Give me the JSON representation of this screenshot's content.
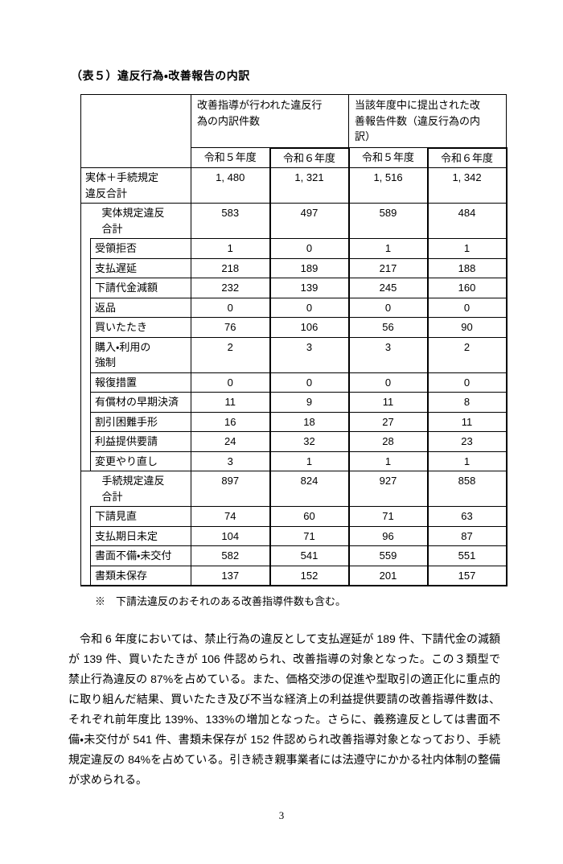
{
  "page": {
    "title": "（表５）違反行為・改善報告の内訳",
    "note": "※　下請法違反のおそれのある改善指導件数も含む。",
    "paragraph": "　令和 6 年度においては、禁止行為の違反として支払遅延が 189 件、下請代金の減額が 139 件、買いたたきが 106 件認められ、改善指導の対象となった。この３類型で禁止行為違反の 87%を占めている。また、価格交渉の促進や型取引の適正化に重点的に取り組んだ結果、買いたたき及び不当な経済上の利益提供要請の改善指導件数は、それぞれ前年度比 139%、133%の増加となった。さらに、義務違反としては書面不備・未交付が 541 件、書類未保存が 152 件認められ改善指導対象となっており、手続規定違反の 84%を占めている。引き続き親事業者には法遵守にかかる社内体制の整備が求められる。",
    "page_number": "3"
  },
  "colors": {
    "text": "#000000",
    "border": "#000000",
    "background": "#ffffff"
  },
  "table": {
    "col_groups": [
      {
        "label": "改善指導が行われた違反行\n為の内訳件数"
      },
      {
        "label": "当該年度中に提出された改\n善報告件数（違反行為の内\n訳）"
      }
    ],
    "year_headers": [
      "令和５年度",
      "令和６年度",
      "令和５年度",
      "令和６年度"
    ],
    "rows": [
      {
        "label": "実体＋手続規定\n違反合計",
        "level": 1,
        "values": [
          "1, 480",
          "1, 321",
          "1, 516",
          "1, 342"
        ]
      },
      {
        "label": "実体規定違反\n合計",
        "level": 2,
        "values": [
          "583",
          "497",
          "589",
          "484"
        ]
      },
      {
        "label": "受領拒否",
        "level": 3,
        "values": [
          "1",
          "0",
          "1",
          "1"
        ]
      },
      {
        "label": "支払遅延",
        "level": 3,
        "values": [
          "218",
          "189",
          "217",
          "188"
        ]
      },
      {
        "label": "下請代金減額",
        "level": 3,
        "values": [
          "232",
          "139",
          "245",
          "160"
        ]
      },
      {
        "label": "返品",
        "level": 3,
        "values": [
          "0",
          "0",
          "0",
          "0"
        ]
      },
      {
        "label": "買いたたき",
        "level": 3,
        "values": [
          "76",
          "106",
          "56",
          "90"
        ]
      },
      {
        "label": "購入・利用の\n強制",
        "level": 3,
        "values": [
          "2",
          "3",
          "3",
          "2"
        ]
      },
      {
        "label": "報復措置",
        "level": 3,
        "values": [
          "0",
          "0",
          "0",
          "0"
        ]
      },
      {
        "label": "有償材の早期決済",
        "level": 3,
        "values": [
          "11",
          "9",
          "11",
          "8"
        ]
      },
      {
        "label": "割引困難手形",
        "level": 3,
        "values": [
          "16",
          "18",
          "27",
          "11"
        ]
      },
      {
        "label": "利益提供要請",
        "level": 3,
        "values": [
          "24",
          "32",
          "28",
          "23"
        ]
      },
      {
        "label": "変更やり直し",
        "level": 3,
        "values": [
          "3",
          "1",
          "1",
          "1"
        ]
      },
      {
        "label": "手続規定違反\n合計",
        "level": 2,
        "values": [
          "897",
          "824",
          "927",
          "858"
        ]
      },
      {
        "label": "下請見直",
        "level": 3,
        "values": [
          "74",
          "60",
          "71",
          "63"
        ]
      },
      {
        "label": "支払期日未定",
        "level": 3,
        "values": [
          "104",
          "71",
          "96",
          "87"
        ]
      },
      {
        "label": "書面不備・未交付",
        "level": 3,
        "values": [
          "582",
          "541",
          "559",
          "551"
        ]
      },
      {
        "label": "書類未保存",
        "level": 3,
        "values": [
          "137",
          "152",
          "201",
          "157"
        ]
      }
    ]
  }
}
